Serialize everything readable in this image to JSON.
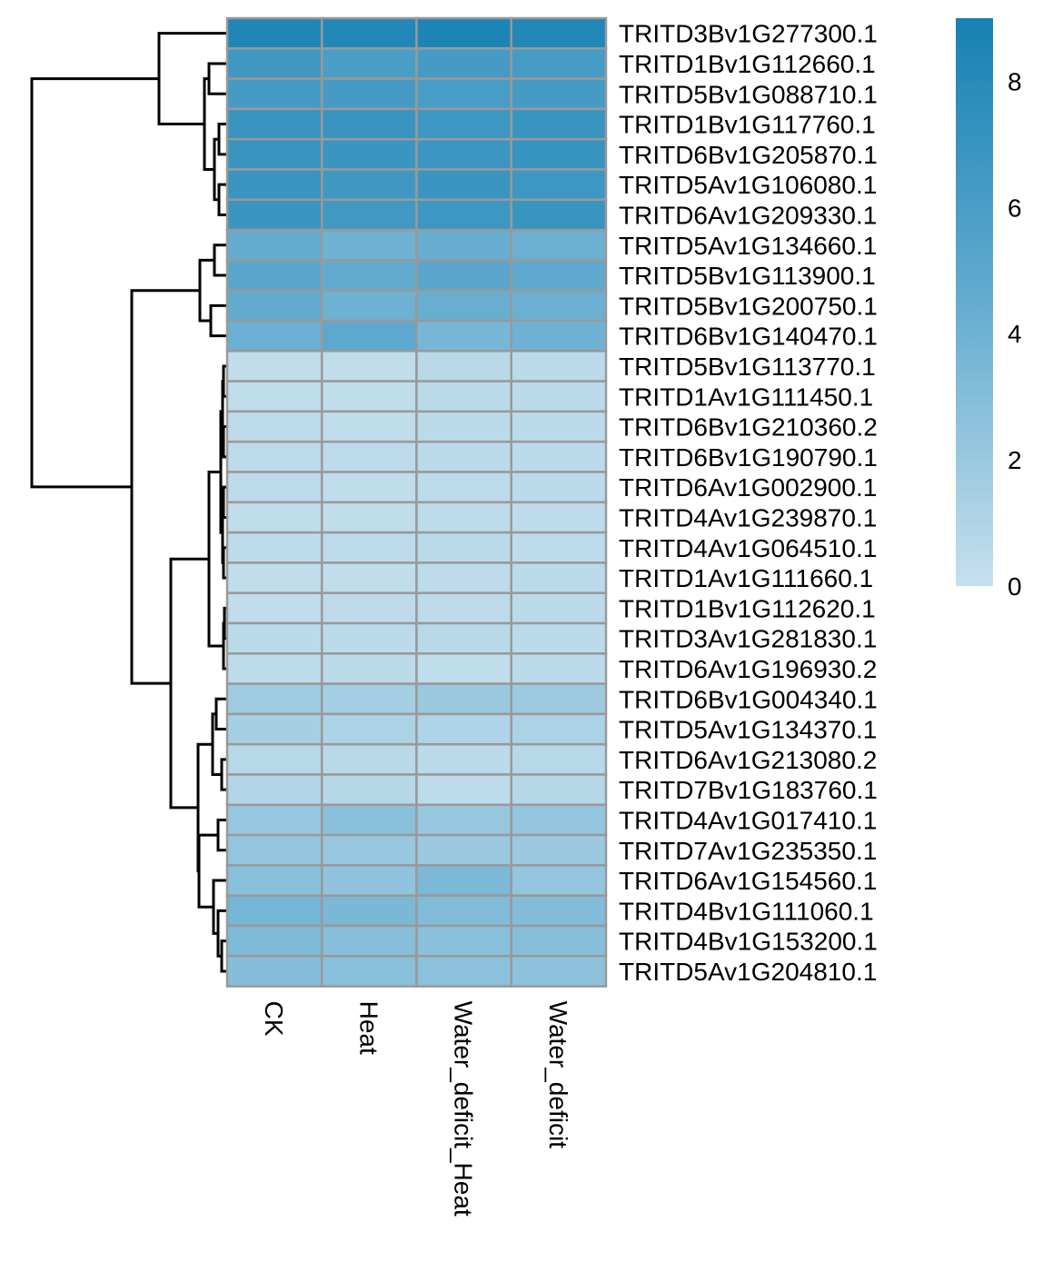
{
  "chart_data": {
    "type": "heatmap",
    "title": "",
    "xlabel": "",
    "ylabel": "",
    "columns": [
      "CK",
      "Heat",
      "Water_deficit_Heat",
      "Water_deficit"
    ],
    "rows": [
      "TRITD3Bv1G277300.1",
      "TRITD1Bv1G112660.1",
      "TRITD5Bv1G088710.1",
      "TRITD1Bv1G117760.1",
      "TRITD6Bv1G205870.1",
      "TRITD5Av1G106080.1",
      "TRITD6Av1G209330.1",
      "TRITD5Av1G134660.1",
      "TRITD5Bv1G113900.1",
      "TRITD5Bv1G200750.1",
      "TRITD6Bv1G140470.1",
      "TRITD5Bv1G113770.1",
      "TRITD1Av1G111450.1",
      "TRITD6Bv1G210360.2",
      "TRITD6Bv1G190790.1",
      "TRITD6Av1G002900.1",
      "TRITD4Av1G239870.1",
      "TRITD4Av1G064510.1",
      "TRITD1Av1G111660.1",
      "TRITD1Bv1G112620.1",
      "TRITD3Av1G281830.1",
      "TRITD6Av1G196930.2",
      "TRITD6Bv1G004340.1",
      "TRITD5Av1G134370.1",
      "TRITD6Av1G213080.2",
      "TRITD7Bv1G183760.1",
      "TRITD4Av1G017410.1",
      "TRITD7Av1G235350.1",
      "TRITD6Av1G154560.1",
      "TRITD4Bv1G111060.1",
      "TRITD4Bv1G153200.1",
      "TRITD5Av1G204810.1"
    ],
    "values": [
      [
        8.5,
        8.3,
        8.6,
        8.4
      ],
      [
        6.6,
        6.0,
        6.3,
        6.2
      ],
      [
        6.3,
        6.3,
        6.1,
        6.3
      ],
      [
        7.0,
        7.0,
        6.7,
        7.0
      ],
      [
        7.0,
        6.9,
        6.8,
        7.1
      ],
      [
        7.0,
        6.6,
        6.9,
        6.7
      ],
      [
        6.9,
        6.5,
        6.7,
        7.0
      ],
      [
        4.5,
        4.0,
        4.4,
        4.2
      ],
      [
        5.1,
        4.6,
        5.1,
        4.8
      ],
      [
        4.6,
        4.1,
        4.3,
        4.2
      ],
      [
        4.2,
        4.9,
        3.6,
        4.0
      ],
      [
        0.3,
        0.3,
        0.6,
        0.5
      ],
      [
        0.3,
        0.3,
        0.5,
        0.5
      ],
      [
        0.4,
        0.3,
        0.5,
        0.5
      ],
      [
        0.4,
        0.4,
        0.5,
        0.5
      ],
      [
        0.4,
        0.3,
        0.4,
        0.5
      ],
      [
        0.3,
        0.3,
        0.4,
        0.4
      ],
      [
        0.4,
        0.4,
        0.5,
        0.4
      ],
      [
        0.3,
        0.3,
        0.4,
        0.5
      ],
      [
        0.3,
        0.4,
        0.4,
        0.5
      ],
      [
        0.5,
        0.5,
        0.6,
        0.5
      ],
      [
        0.4,
        0.5,
        0.3,
        0.5
      ],
      [
        1.8,
        1.6,
        2.0,
        1.9
      ],
      [
        1.5,
        1.2,
        1.0,
        1.2
      ],
      [
        0.7,
        0.6,
        0.5,
        0.7
      ],
      [
        0.9,
        0.8,
        0.4,
        0.8
      ],
      [
        2.2,
        2.8,
        2.2,
        2.3
      ],
      [
        2.3,
        2.1,
        2.0,
        2.0
      ],
      [
        2.8,
        2.5,
        3.4,
        2.3
      ],
      [
        3.7,
        3.5,
        3.2,
        3.1
      ],
      [
        3.3,
        2.9,
        2.8,
        2.9
      ],
      [
        3.0,
        2.8,
        2.7,
        2.6
      ]
    ],
    "color_scale": {
      "min": 0,
      "max": 9,
      "low_color": "#c6e0ed",
      "mid_color": "#64acd0",
      "high_color": "#1681b3",
      "ticks": [
        0,
        2,
        4,
        6,
        8
      ]
    },
    "cell_border_color": "#999999",
    "row_dendrogram": true,
    "column_dendrogram": false,
    "legend": "right"
  }
}
